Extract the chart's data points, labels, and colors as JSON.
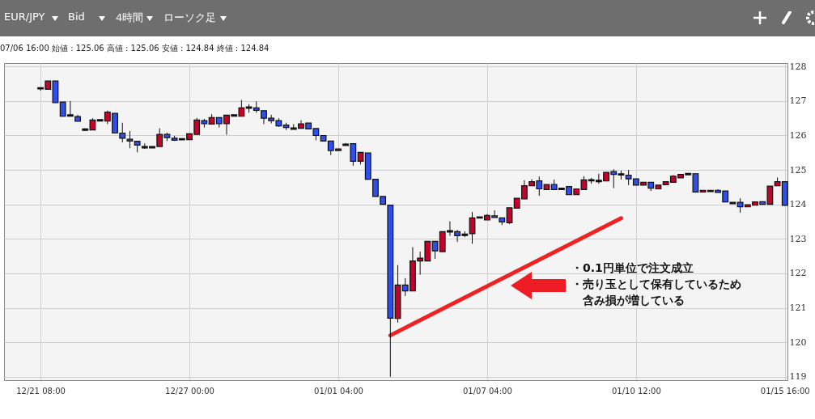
{
  "chart_data": {
    "type": "candlestick",
    "title": "EUR/JPY",
    "subtitle": "07/06 16:00 始値 : 125.06 高値 : 125.06 安値 : 124.84 終値 : 124.84",
    "annotations": [
      "Bid",
      "4時間",
      "ローソク足",
      "・0.1円単位で注文成立",
      "・売り玉として保有しているため",
      "含み損が増している"
    ],
    "categories": [
      "12/21 08:00",
      null,
      null,
      null,
      null,
      null,
      null,
      null,
      null,
      null,
      null,
      null,
      null,
      null,
      null,
      null,
      null,
      null,
      null,
      null,
      "12/27 00:00",
      null,
      null,
      null,
      null,
      null,
      null,
      null,
      null,
      null,
      null,
      null,
      null,
      null,
      null,
      null,
      null,
      null,
      null,
      null,
      "01/01 04:00",
      null,
      null,
      null,
      null,
      null,
      null,
      null,
      null,
      null,
      null,
      null,
      null,
      null,
      null,
      null,
      null,
      null,
      null,
      null,
      "01/07 04:00",
      null,
      null,
      null,
      null,
      null,
      null,
      null,
      null,
      null,
      null,
      null,
      null,
      null,
      null,
      null,
      null,
      null,
      null,
      null,
      "01/10 12:00",
      null,
      null,
      null,
      null,
      null,
      null,
      null,
      null,
      null,
      null,
      null,
      null,
      null,
      null,
      null,
      null,
      null,
      null,
      null,
      "01/15 16:00"
    ],
    "ohlc": [
      [
        127.39,
        127.39,
        127.3,
        127.35
      ],
      [
        127.34,
        127.58,
        127.34,
        127.58
      ],
      [
        127.58,
        127.58,
        126.95,
        126.95
      ],
      [
        126.97,
        126.97,
        126.56,
        126.56
      ],
      [
        126.6,
        127.0,
        126.56,
        126.56
      ],
      [
        126.55,
        126.6,
        126.41,
        126.41
      ],
      [
        126.19,
        126.21,
        126.13,
        126.15
      ],
      [
        126.16,
        126.5,
        126.16,
        126.45
      ],
      [
        126.46,
        126.46,
        126.42,
        126.42
      ],
      [
        126.42,
        126.72,
        126.33,
        126.68
      ],
      [
        126.64,
        126.64,
        126.07,
        126.07
      ],
      [
        126.07,
        126.37,
        125.8,
        125.92
      ],
      [
        125.89,
        126.13,
        125.63,
        125.84
      ],
      [
        125.83,
        125.83,
        125.51,
        125.72
      ],
      [
        125.68,
        125.77,
        125.61,
        125.64
      ],
      [
        125.68,
        125.68,
        125.64,
        125.64
      ],
      [
        125.68,
        126.21,
        125.68,
        126.03
      ],
      [
        126.03,
        126.08,
        125.84,
        125.94
      ],
      [
        125.92,
        125.99,
        125.84,
        125.86
      ],
      [
        125.91,
        125.91,
        125.87,
        125.87
      ],
      [
        125.88,
        126.05,
        125.88,
        126.05
      ],
      [
        126.03,
        126.51,
        126.03,
        126.45
      ],
      [
        126.43,
        126.48,
        126.23,
        126.34
      ],
      [
        126.33,
        126.62,
        126.33,
        126.52
      ],
      [
        126.52,
        126.52,
        126.23,
        126.34
      ],
      [
        126.34,
        126.59,
        126.02,
        126.59
      ],
      [
        126.6,
        126.6,
        126.56,
        126.56
      ],
      [
        126.56,
        127.03,
        126.56,
        126.8
      ],
      [
        126.83,
        126.91,
        126.66,
        126.79
      ],
      [
        126.8,
        126.99,
        126.66,
        126.73
      ],
      [
        126.72,
        126.72,
        126.33,
        126.5
      ],
      [
        126.5,
        126.6,
        126.35,
        126.43
      ],
      [
        126.43,
        126.5,
        126.25,
        126.28
      ],
      [
        126.3,
        126.37,
        126.16,
        126.23
      ],
      [
        126.22,
        126.33,
        126.18,
        126.18
      ],
      [
        126.21,
        126.44,
        126.21,
        126.34
      ],
      [
        126.36,
        126.36,
        126.19,
        126.19
      ],
      [
        126.2,
        126.2,
        125.86,
        126.0
      ],
      [
        126.0,
        126.0,
        125.84,
        125.84
      ],
      [
        125.84,
        125.84,
        125.43,
        125.56
      ],
      [
        125.56,
        125.61,
        125.56,
        125.61
      ],
      [
        125.75,
        125.78,
        125.71,
        125.71
      ],
      [
        125.76,
        125.76,
        125.12,
        125.25
      ],
      [
        125.25,
        125.51,
        125.16,
        125.51
      ],
      [
        125.49,
        125.49,
        124.73,
        124.73
      ],
      [
        124.73,
        124.73,
        124.23,
        124.23
      ],
      [
        124.23,
        124.23,
        124.0,
        124.0
      ],
      [
        123.98,
        123.98,
        119.0,
        120.7
      ],
      [
        120.69,
        122.24,
        120.57,
        121.66
      ],
      [
        121.66,
        121.86,
        121.34,
        121.49
      ],
      [
        121.49,
        122.76,
        121.49,
        122.36
      ],
      [
        122.36,
        122.63,
        121.96,
        122.44
      ],
      [
        122.36,
        122.93,
        122.36,
        122.93
      ],
      [
        122.93,
        122.93,
        122.42,
        122.65
      ],
      [
        122.63,
        123.21,
        122.63,
        123.21
      ],
      [
        123.24,
        123.51,
        123.09,
        123.2
      ],
      [
        123.21,
        123.26,
        122.91,
        123.09
      ],
      [
        123.14,
        123.22,
        123.05,
        123.1
      ],
      [
        123.15,
        123.78,
        122.86,
        123.61
      ],
      [
        123.64,
        123.64,
        123.6,
        123.6
      ],
      [
        123.55,
        123.72,
        123.55,
        123.68
      ],
      [
        123.67,
        123.83,
        123.62,
        123.62
      ],
      [
        123.61,
        123.61,
        123.4,
        123.49
      ],
      [
        123.47,
        123.9,
        123.43,
        123.9
      ],
      [
        123.89,
        124.18,
        123.89,
        124.18
      ],
      [
        124.16,
        124.7,
        124.16,
        124.54
      ],
      [
        124.54,
        124.73,
        124.54,
        124.66
      ],
      [
        124.68,
        124.81,
        124.25,
        124.45
      ],
      [
        124.43,
        124.58,
        124.43,
        124.58
      ],
      [
        124.58,
        124.72,
        124.43,
        124.43
      ],
      [
        124.47,
        124.47,
        124.43,
        124.43
      ],
      [
        124.52,
        124.52,
        124.28,
        124.28
      ],
      [
        124.28,
        124.45,
        124.28,
        124.45
      ],
      [
        124.43,
        124.82,
        124.43,
        124.71
      ],
      [
        124.72,
        124.77,
        124.6,
        124.68
      ],
      [
        124.7,
        124.89,
        124.6,
        124.66
      ],
      [
        124.68,
        124.93,
        124.68,
        124.93
      ],
      [
        124.95,
        125.02,
        124.47,
        124.87
      ],
      [
        124.89,
        124.98,
        124.72,
        124.85
      ],
      [
        124.85,
        125.0,
        124.56,
        124.74
      ],
      [
        124.74,
        124.74,
        124.56,
        124.56
      ],
      [
        124.56,
        124.64,
        124.56,
        124.64
      ],
      [
        124.64,
        124.64,
        124.39,
        124.47
      ],
      [
        124.45,
        124.56,
        124.45,
        124.56
      ],
      [
        124.57,
        124.66,
        124.57,
        124.66
      ],
      [
        124.64,
        124.85,
        124.64,
        124.82
      ],
      [
        124.77,
        124.87,
        124.77,
        124.87
      ],
      [
        124.9,
        124.9,
        124.86,
        124.86
      ],
      [
        124.89,
        124.89,
        124.36,
        124.36
      ],
      [
        124.36,
        124.41,
        124.36,
        124.41
      ],
      [
        124.41,
        124.41,
        124.37,
        124.37
      ],
      [
        124.41,
        124.44,
        124.35,
        124.35
      ],
      [
        124.39,
        124.39,
        124.07,
        124.07
      ],
      [
        124.06,
        124.06,
        124.02,
        124.02
      ],
      [
        124.06,
        124.18,
        123.76,
        123.93
      ],
      [
        123.93,
        123.99,
        123.93,
        123.99
      ],
      [
        123.98,
        124.07,
        123.98,
        124.07
      ],
      [
        124.08,
        124.08,
        124.0,
        124.0
      ],
      [
        124.0,
        124.53,
        124.0,
        124.53
      ],
      [
        124.54,
        124.78,
        124.54,
        124.66
      ],
      [
        124.66,
        124.66,
        123.97,
        123.97
      ]
    ],
    "colors": [
      "#111111",
      "#c4002b",
      "#2f4fe8",
      "#2f4fe8",
      "#111111",
      "#2f4fe8",
      "#111111",
      "#c4002b",
      "#111111",
      "#c4002b",
      "#2f4fe8",
      "#2f4fe8",
      "#2f4fe8",
      "#2f4fe8",
      "#111111",
      "#111111",
      "#c4002b",
      "#2f4fe8",
      "#2f4fe8",
      "#111111",
      "#c4002b",
      "#c4002b",
      "#2f4fe8",
      "#c4002b",
      "#2f4fe8",
      "#c4002b",
      "#111111",
      "#c4002b",
      "#111111",
      "#2f4fe8",
      "#2f4fe8",
      "#2f4fe8",
      "#2f4fe8",
      "#2f4fe8",
      "#111111",
      "#c4002b",
      "#2f4fe8",
      "#2f4fe8",
      "#2f4fe8",
      "#2f4fe8",
      "#c4002b",
      "#111111",
      "#2f4fe8",
      "#c4002b",
      "#2f4fe8",
      "#2f4fe8",
      "#2f4fe8",
      "#2f4fe8",
      "#c4002b",
      "#2f4fe8",
      "#c4002b",
      "#c4002b",
      "#c4002b",
      "#2f4fe8",
      "#c4002b",
      "#111111",
      "#2f4fe8",
      "#111111",
      "#c4002b",
      "#111111",
      "#c4002b",
      "#2f4fe8",
      "#2f4fe8",
      "#c4002b",
      "#c4002b",
      "#c4002b",
      "#c4002b",
      "#2f4fe8",
      "#c4002b",
      "#2f4fe8",
      "#111111",
      "#2f4fe8",
      "#c4002b",
      "#c4002b",
      "#111111",
      "#111111",
      "#c4002b",
      "#2f4fe8",
      "#111111",
      "#2f4fe8",
      "#2f4fe8",
      "#c4002b",
      "#2f4fe8",
      "#c4002b",
      "#c4002b",
      "#c4002b",
      "#c4002b",
      "#111111",
      "#2f4fe8",
      "#c4002b",
      "#111111",
      "#2f4fe8",
      "#2f4fe8",
      "#111111",
      "#2f4fe8",
      "#c4002b",
      "#c4002b",
      "#2f4fe8",
      "#c4002b",
      "#c4002b",
      "#2f4fe8"
    ],
    "series": [
      {
        "type": "line",
        "color": "#ee2222",
        "values": [
          null,
          null,
          null,
          null,
          null,
          null,
          null,
          null,
          null,
          null,
          null,
          null,
          null,
          null,
          null,
          null,
          null,
          null,
          null,
          null,
          null,
          null,
          null,
          null,
          null,
          null,
          null,
          null,
          null,
          null,
          null,
          null,
          null,
          null,
          null,
          null,
          null,
          null,
          null,
          null,
          null,
          null,
          null,
          null,
          null,
          null,
          null,
          120.2,
          null,
          null,
          null,
          null,
          null,
          null,
          null,
          null,
          null,
          null,
          null,
          null,
          null,
          null,
          null,
          null,
          null,
          null,
          null,
          null,
          null,
          null,
          null,
          null,
          null,
          null,
          null,
          null,
          null,
          null,
          123.6,
          null,
          null,
          null,
          null,
          null,
          null,
          null,
          null,
          null,
          null,
          null,
          null,
          null,
          null,
          null,
          null,
          null,
          null,
          null,
          null,
          null,
          null
        ]
      }
    ],
    "ylim": [
      118.9,
      128.1
    ],
    "yticks": [
      119,
      120,
      121,
      122,
      123,
      124,
      125,
      126,
      127,
      128
    ],
    "grid": true
  }
}
